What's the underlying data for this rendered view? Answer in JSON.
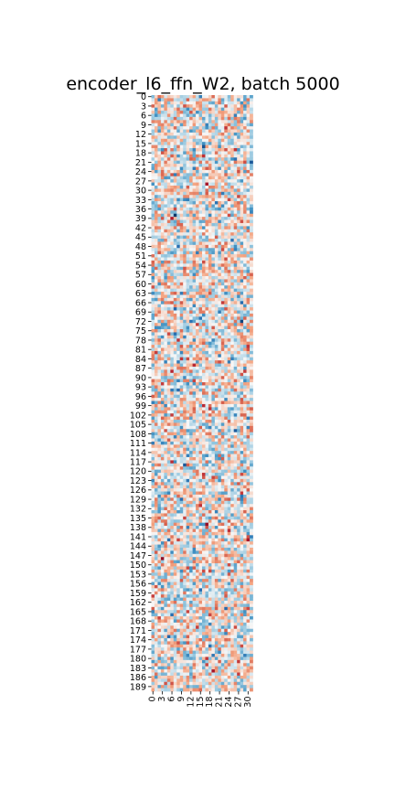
{
  "chart_data": {
    "type": "heatmap",
    "title": "encoder_l6_ffn_W2, batch 5000",
    "n_rows": 191,
    "n_cols": 32,
    "y_tick_labels": [
      "0",
      "3",
      "6",
      "9",
      "12",
      "15",
      "18",
      "21",
      "24",
      "27",
      "30",
      "33",
      "36",
      "39",
      "42",
      "45",
      "48",
      "51",
      "54",
      "57",
      "60",
      "63",
      "66",
      "69",
      "72",
      "75",
      "78",
      "81",
      "84",
      "87",
      "90",
      "93",
      "96",
      "99",
      "102",
      "105",
      "108",
      "111",
      "114",
      "117",
      "120",
      "123",
      "126",
      "129",
      "132",
      "135",
      "138",
      "141",
      "144",
      "147",
      "150",
      "153",
      "156",
      "159",
      "162",
      "165",
      "168",
      "171",
      "174",
      "177",
      "180",
      "183",
      "186",
      "189"
    ],
    "x_tick_labels": [
      "0",
      "3",
      "6",
      "9",
      "12",
      "15",
      "18",
      "21",
      "24",
      "27",
      "30"
    ],
    "colormap": "RdBu_r",
    "colorbar": false,
    "xlabel": "",
    "ylabel": ""
  }
}
